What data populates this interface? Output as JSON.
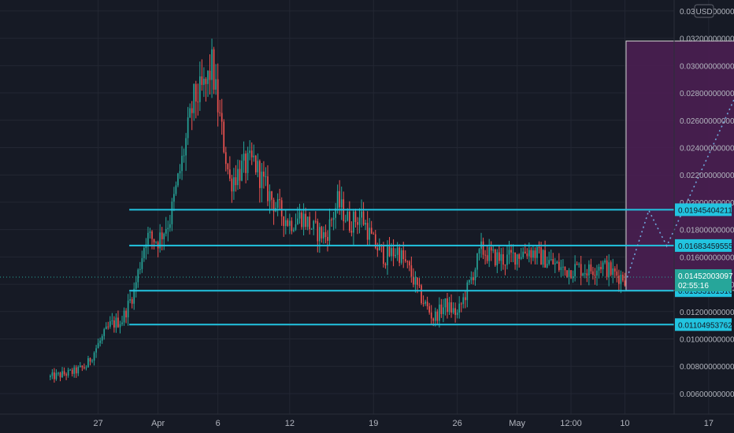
{
  "currency_badge": "USD",
  "colors": {
    "background": "#161a25",
    "grid": "#232733",
    "up": "#26a69a",
    "down": "#ef5350",
    "level_line": "#22c4e0",
    "projection_fill": "#4a1f52",
    "projection_border": "#d8d8d8",
    "path": "#6fa8dc",
    "current_price_bg": "#26a69a"
  },
  "chart_data": {
    "type": "candlestick",
    "y_axis": {
      "min": 0.0045,
      "max": 0.0348,
      "position": "right",
      "ticks": [
        "0.00600000000",
        "0.00800000000",
        "0.01000000000",
        "0.01200000000",
        "0.01400000000",
        "0.01600000000",
        "0.01800000000",
        "0.02000000000",
        "0.02200000000",
        "0.02400000000",
        "0.02600000000",
        "0.02800000000",
        "0.03000000000",
        "0.03200000000",
        "0.03400000000"
      ],
      "tick_values": [
        0.006,
        0.008,
        0.01,
        0.012,
        0.014,
        0.016,
        0.018,
        0.02,
        0.022,
        0.024,
        0.026,
        0.028,
        0.03,
        0.032,
        0.034
      ]
    },
    "x_axis": {
      "unit": "day",
      "min": 0,
      "max": 55,
      "labels": [
        {
          "text": "27",
          "day": 4
        },
        {
          "text": "Apr",
          "day": 9
        },
        {
          "text": "6",
          "day": 14
        },
        {
          "text": "12",
          "day": 20
        },
        {
          "text": "19",
          "day": 27
        },
        {
          "text": "26",
          "day": 34
        },
        {
          "text": "May",
          "day": 39
        },
        {
          "text": "12:00",
          "day": 43.5
        },
        {
          "text": "10",
          "day": 48
        },
        {
          "text": "17",
          "day": 55
        }
      ]
    },
    "horizontal_levels": [
      {
        "value": 0.01945404211,
        "label": "0.01945404211"
      },
      {
        "value": 0.01683459555,
        "label": "0.01683459555"
      },
      {
        "value": 0.0135318151,
        "label": "0.01353181510"
      },
      {
        "value": 0.01104953762,
        "label": "0.01104953762"
      }
    ],
    "current_price": {
      "value": 0.01452003097,
      "label": "0.01452003097",
      "countdown": "02:55:16"
    },
    "projection_box": {
      "day_start": 48.1,
      "day_end": 59,
      "price_top": 0.0318,
      "price_bottom": 0.01355
    },
    "projected_path": [
      [
        48.2,
        0.0145
      ],
      [
        50,
        0.0194
      ],
      [
        51.5,
        0.0168
      ],
      [
        59,
        0.0311
      ]
    ],
    "key_closes": [
      [
        0,
        0.0072
      ],
      [
        2,
        0.0076
      ],
      [
        3,
        0.008
      ],
      [
        4,
        0.0096
      ],
      [
        5,
        0.011
      ],
      [
        6,
        0.0114
      ],
      [
        7,
        0.0135
      ],
      [
        8,
        0.0175
      ],
      [
        9,
        0.0172
      ],
      [
        10,
        0.0188
      ],
      [
        11,
        0.023
      ],
      [
        12,
        0.0275
      ],
      [
        13,
        0.0285
      ],
      [
        13.5,
        0.03
      ],
      [
        14,
        0.027
      ],
      [
        15,
        0.0215
      ],
      [
        16,
        0.0225
      ],
      [
        17,
        0.023
      ],
      [
        18,
        0.021
      ],
      [
        19,
        0.0195
      ],
      [
        20,
        0.0185
      ],
      [
        21,
        0.019
      ],
      [
        22,
        0.018
      ],
      [
        23,
        0.0175
      ],
      [
        24,
        0.02
      ],
      [
        25,
        0.0185
      ],
      [
        26,
        0.019
      ],
      [
        27,
        0.017
      ],
      [
        28,
        0.016
      ],
      [
        29,
        0.0165
      ],
      [
        30,
        0.015
      ],
      [
        31,
        0.013
      ],
      [
        32,
        0.0115
      ],
      [
        33,
        0.0125
      ],
      [
        34,
        0.0118
      ],
      [
        35,
        0.014
      ],
      [
        36,
        0.0165
      ],
      [
        37,
        0.016
      ],
      [
        38,
        0.0158
      ],
      [
        39,
        0.0162
      ],
      [
        40,
        0.0165
      ],
      [
        41,
        0.016
      ],
      [
        42,
        0.0155
      ],
      [
        43,
        0.015
      ],
      [
        44,
        0.0152
      ],
      [
        45,
        0.015
      ],
      [
        46,
        0.0155
      ],
      [
        47,
        0.0148
      ],
      [
        48,
        0.0145
      ]
    ]
  }
}
